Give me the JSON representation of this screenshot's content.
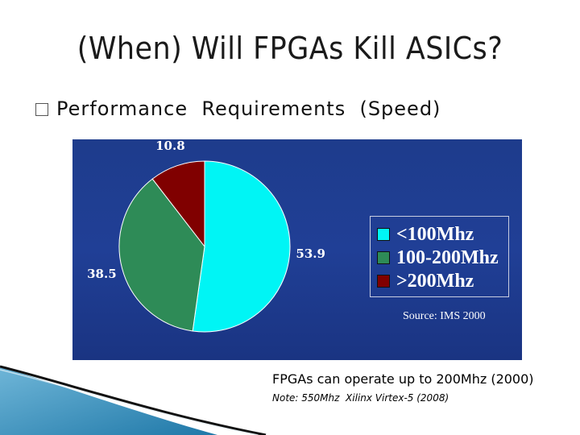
{
  "slide": {
    "title": "(When) Will FPGAs Kill ASICs?",
    "bullet": "Performance  Requirements  (Speed)",
    "caption": "FPGAs can operate up to 200Mhz (2000)",
    "note": "Note: 550Mhz  Xilinx Virtex-5 (2008)"
  },
  "chart_data": {
    "type": "pie",
    "slices": [
      {
        "label": "<100Mhz",
        "value": 53.9,
        "display": "53.9",
        "color": "#00f5f5"
      },
      {
        "label": "100-200Mhz",
        "value": 38.5,
        "display": "38.5",
        "color": "#2e8b57"
      },
      {
        "label": ">200Mhz",
        "value": 10.8,
        "display": "10.8",
        "color": "#800000"
      }
    ],
    "legend_placement": "right",
    "source": "Source: IMS 2000",
    "background": "#1e3c8c"
  }
}
